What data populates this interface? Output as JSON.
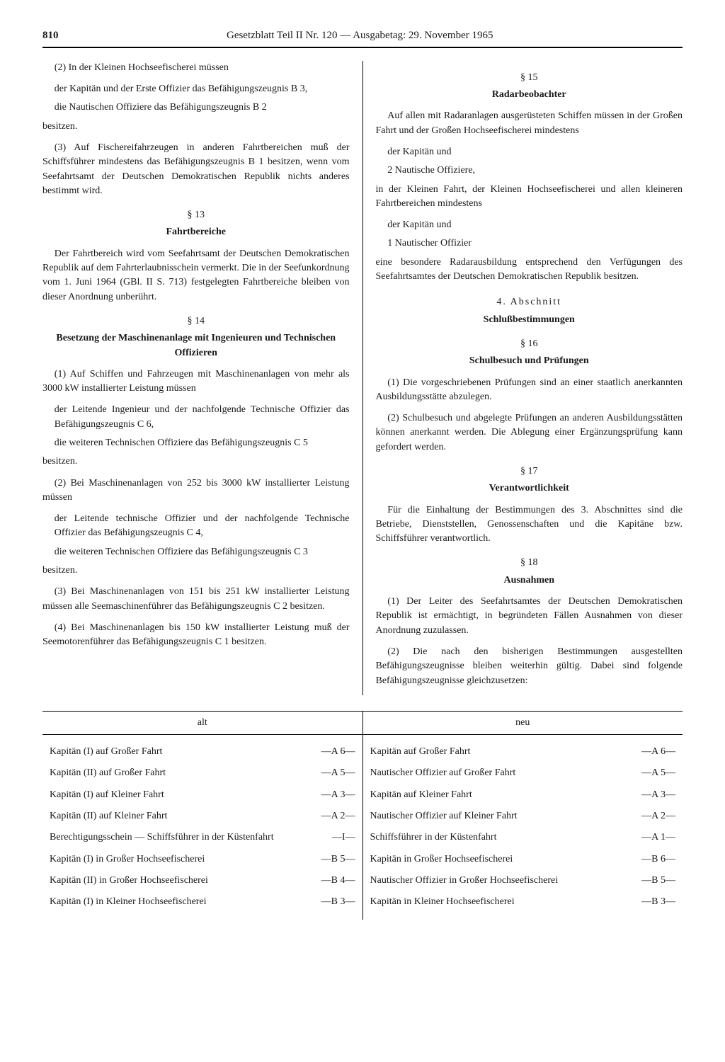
{
  "header": {
    "page_number": "810",
    "title": "Gesetzblatt Teil II Nr. 120 — Ausgabetag: 29. November 1965"
  },
  "left": {
    "p1": "(2) In der Kleinen Hochseefischerei müssen",
    "p2": "der Kapitän und der Erste Offizier das Befähigungszeugnis B 3,",
    "p3": "die Nautischen Offiziere das Befähigungszeugnis B 2",
    "p4": "besitzen.",
    "p5": "(3) Auf Fischereifahrzeugen in anderen Fahrtbereichen muß der Schiffsführer mindestens das Befähigungszeugnis B 1 besitzen, wenn vom Seefahrtsamt der Deutschen Demokratischen Republik nichts anderes bestimmt wird.",
    "s13": "§ 13",
    "s13_title": "Fahrtbereiche",
    "p6": "Der Fahrtbereich wird vom Seefahrtsamt der Deutschen Demokratischen Republik auf dem Fahrterlaubnisschein vermerkt. Die in der Seefunkordnung vom 1. Juni 1964 (GBl. II S. 713) festgelegten Fahrtbereiche bleiben von dieser Anordnung unberührt.",
    "s14": "§ 14",
    "s14_title": "Besetzung der Maschinenanlage mit Ingenieuren und Technischen Offizieren",
    "p7": "(1) Auf Schiffen und Fahrzeugen mit Maschinenanlagen von mehr als 3000 kW installierter Leistung müssen",
    "p8": "der Leitende Ingenieur und der nachfolgende Technische Offizier das Befähigungszeugnis C 6,",
    "p9": "die weiteren Technischen Offiziere das Befähigungszeugnis C 5",
    "p10": "besitzen.",
    "p11": "(2) Bei Maschinenanlagen von 252 bis 3000 kW installierter Leistung müssen",
    "p12": "der Leitende technische Offizier und der nachfolgende Technische Offizier das Befähigungszeugnis C 4,",
    "p13": "die weiteren Technischen Offiziere das Befähigungszeugnis C 3",
    "p14": "besitzen.",
    "p15": "(3) Bei Maschinenanlagen von 151 bis 251 kW installierter Leistung müssen alle Seemaschinenführer das Befähigungszeugnis C 2 besitzen.",
    "p16": "(4) Bei Maschinenanlagen bis 150 kW installierter Leistung muß der Seemotorenführer das Befähigungszeugnis C 1 besitzen."
  },
  "right": {
    "s15": "§ 15",
    "s15_title": "Radarbeobachter",
    "p1": "Auf allen mit Radaranlagen ausgerüsteten Schiffen müssen in der Großen Fahrt und der Großen Hochseefischerei mindestens",
    "p2": "der Kapitän und",
    "p3": "2 Nautische Offiziere,",
    "p4": "in der Kleinen Fahrt, der Kleinen Hochseefischerei und allen kleineren Fahrtbereichen mindestens",
    "p5": "der Kapitän und",
    "p6": "1 Nautischer Offizier",
    "p7": "eine besondere Radarausbildung entsprechend den Verfügungen des Seefahrtsamtes der Deutschen Demokratischen Republik besitzen.",
    "chapter4": "4. Abschnitt",
    "chapter4_title": "Schlußbestimmungen",
    "s16": "§ 16",
    "s16_title": "Schulbesuch und Prüfungen",
    "p8": "(1) Die vorgeschriebenen Prüfungen sind an einer staatlich anerkannten Ausbildungsstätte abzulegen.",
    "p9": "(2) Schulbesuch und abgelegte Prüfungen an anderen Ausbildungsstätten können anerkannt werden. Die Ablegung einer Ergänzungsprüfung kann gefordert werden.",
    "s17": "§ 17",
    "s17_title": "Verantwortlichkeit",
    "p10": "Für die Einhaltung der Bestimmungen des 3. Abschnittes sind die Betriebe, Dienststellen, Genossenschaften und die Kapitäne bzw. Schiffsführer verantwortlich.",
    "s18": "§ 18",
    "s18_title": "Ausnahmen",
    "p11": "(1) Der Leiter des Seefahrtsamtes der Deutschen Demokratischen Republik ist ermächtigt, in begründeten Fällen Ausnahmen von dieser Anordnung zuzulassen.",
    "p12": "(2) Die nach den bisherigen Bestimmungen ausgestellten Befähigungszeugnisse bleiben weiterhin gültig. Dabei sind folgende Befähigungszeugnisse gleichzusetzen:"
  },
  "table": {
    "head_alt": "alt",
    "head_neu": "neu",
    "alt_rows": [
      {
        "label": "Kapitän (I) auf Großer Fahrt",
        "code": "—A 6—"
      },
      {
        "label": "Kapitän (II) auf Großer Fahrt",
        "code": "—A 5—"
      },
      {
        "label": "Kapitän (I) auf Kleiner Fahrt",
        "code": "—A 3—"
      },
      {
        "label": "Kapitän (II) auf Kleiner Fahrt",
        "code": "—A 2—"
      },
      {
        "label": "Berechtigungsschein — Schiffsführer in der Küstenfahrt",
        "code": "—I—"
      },
      {
        "label": "Kapitän (I) in Großer Hochseefischerei",
        "code": "—B 5—"
      },
      {
        "label": "Kapitän (II) in Großer Hochseefischerei",
        "code": "—B 4—"
      },
      {
        "label": "Kapitän (I) in Kleiner Hochseefischerei",
        "code": "—B 3—"
      }
    ],
    "neu_rows": [
      {
        "label": "Kapitän auf Großer Fahrt",
        "code": "—A 6—"
      },
      {
        "label": "Nautischer Offizier auf Großer Fahrt",
        "code": "—A 5—"
      },
      {
        "label": "Kapitän auf Kleiner Fahrt",
        "code": "—A 3—"
      },
      {
        "label": "Nautischer Offizier auf Kleiner Fahrt",
        "code": "—A 2—"
      },
      {
        "label": "Schiffsführer in der Küstenfahrt",
        "code": "—A 1—"
      },
      {
        "label": "Kapitän in Großer Hochseefischerei",
        "code": "—B 6—"
      },
      {
        "label": "Nautischer Offizier in Großer Hochseefischerei",
        "code": "—B 5—"
      },
      {
        "label": "Kapitän in Kleiner Hochseefischerei",
        "code": "—B 3—"
      }
    ]
  }
}
